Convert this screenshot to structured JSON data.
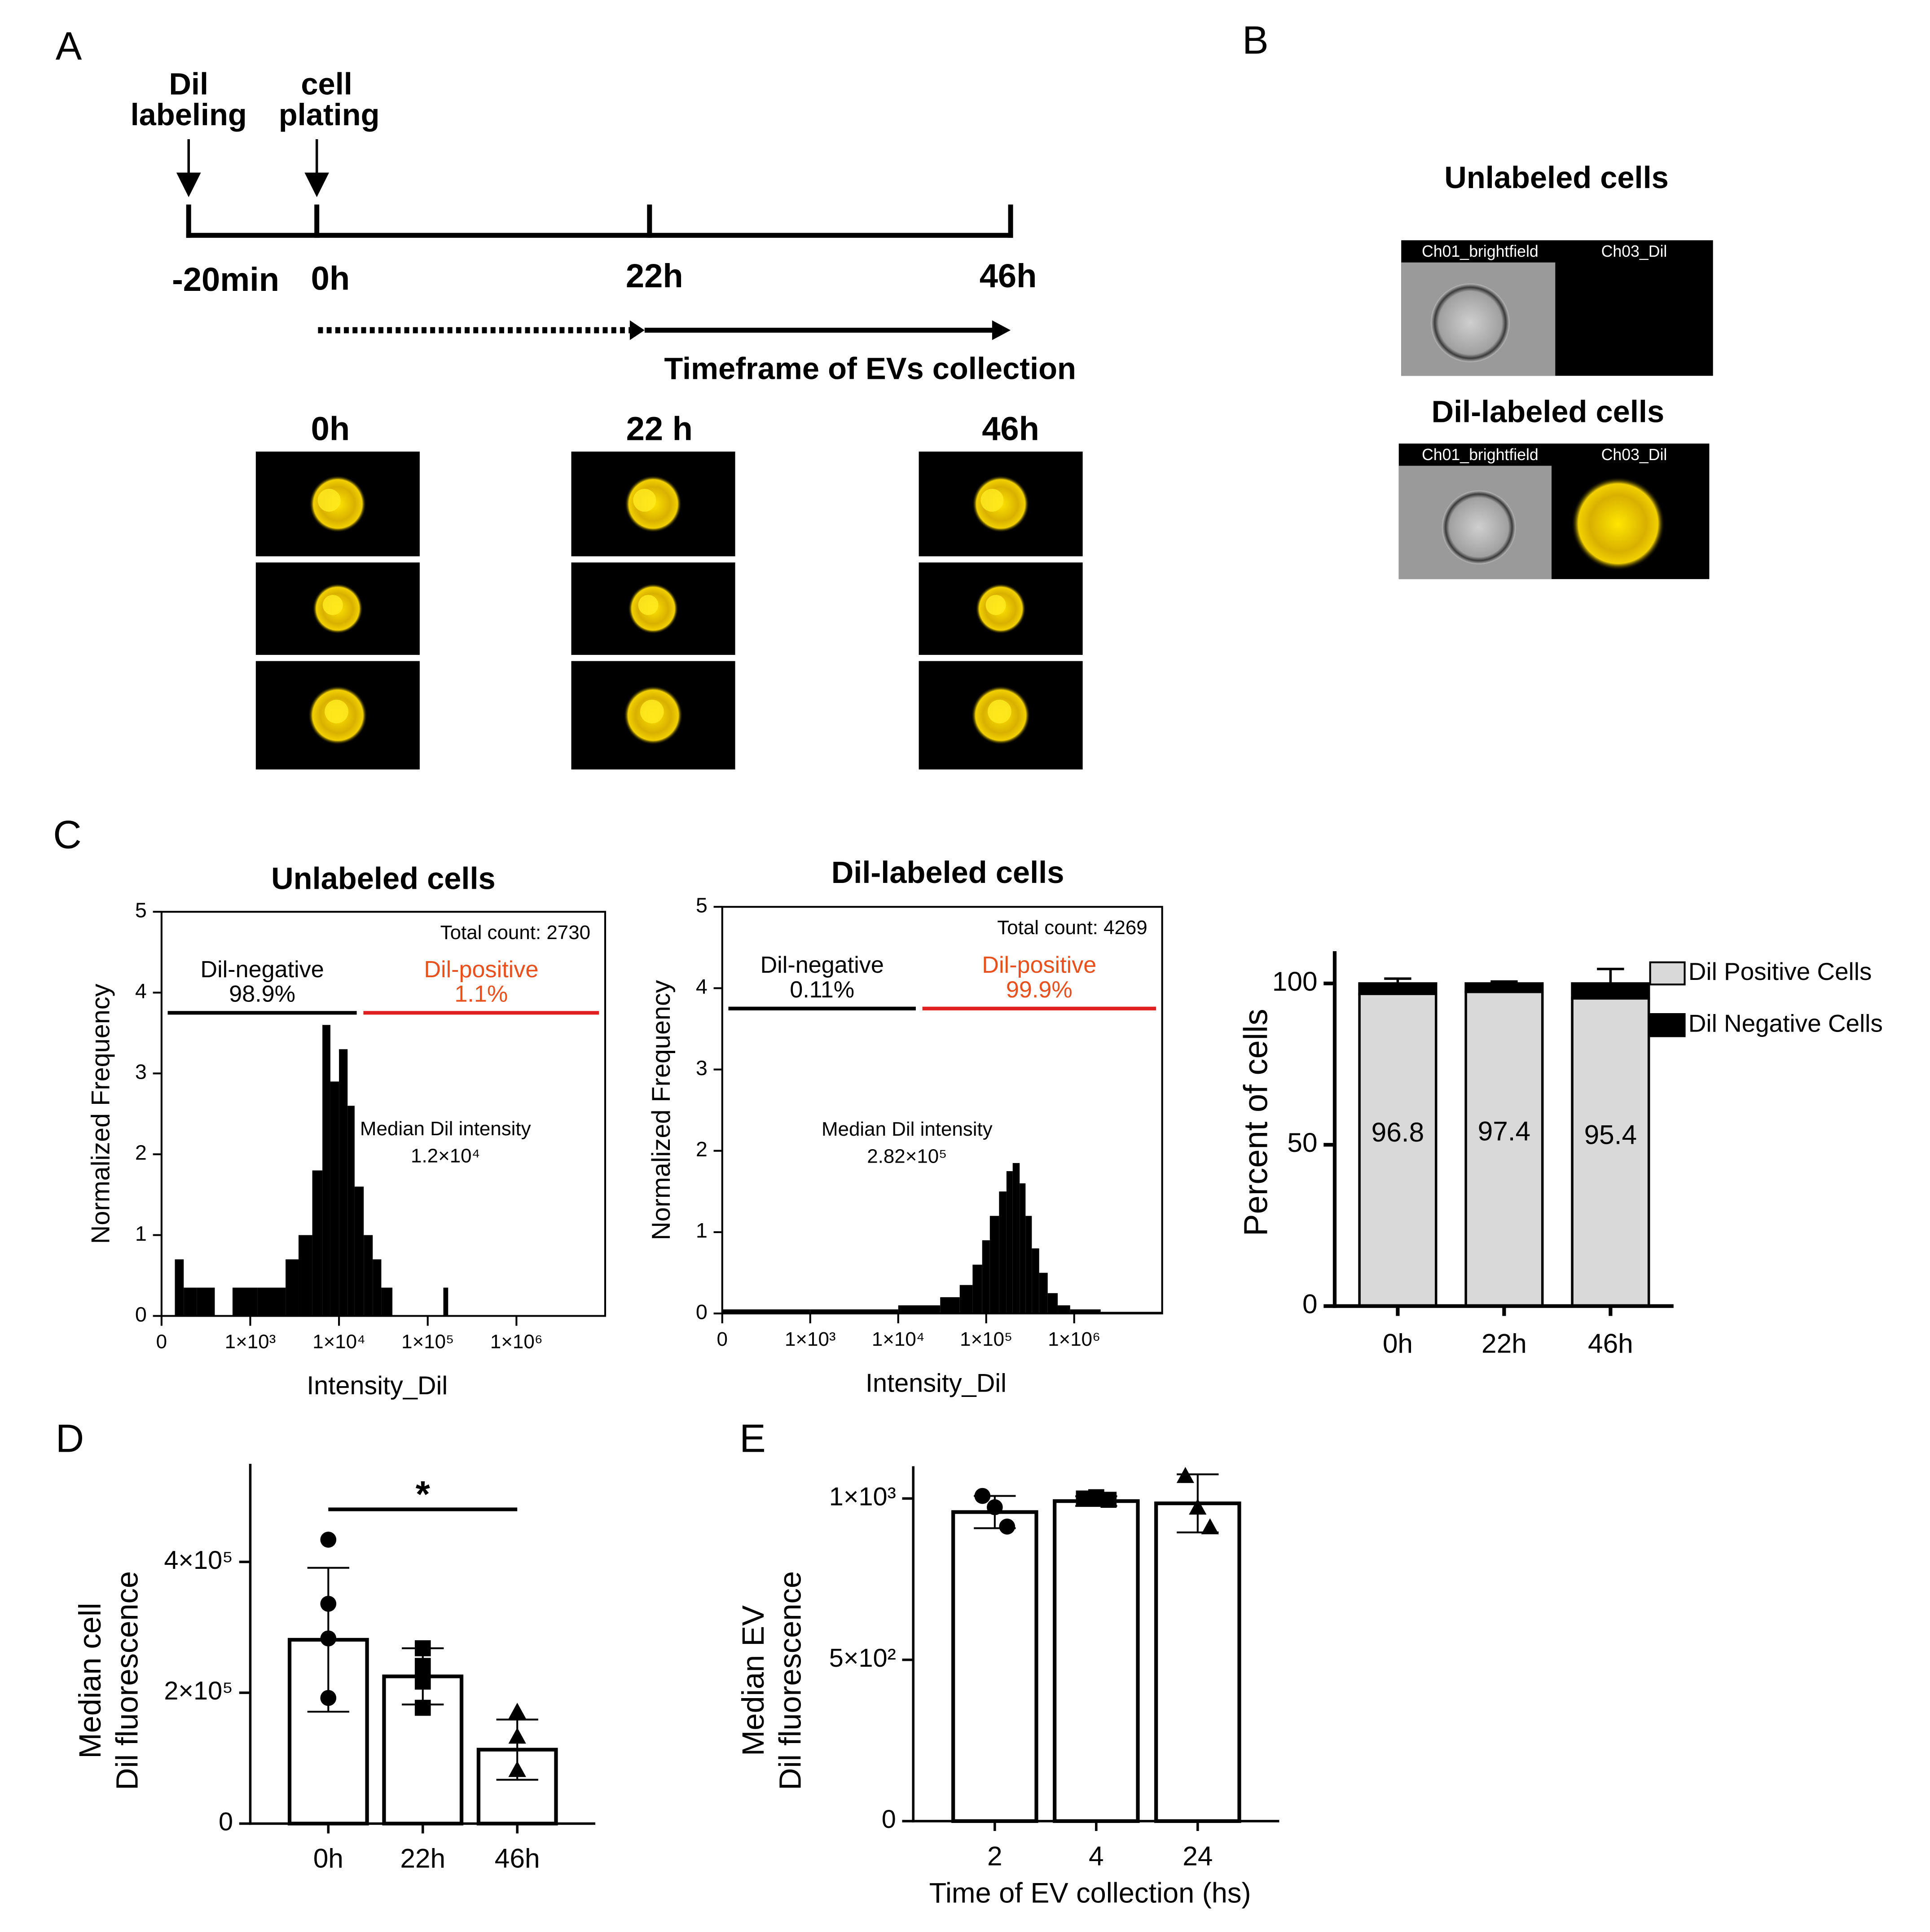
{
  "panel_labels": [
    "A",
    "B",
    "C",
    "D",
    "E"
  ],
  "timeline": {
    "events": [
      [
        "Dil",
        "labeling"
      ],
      [
        "cell",
        "plating"
      ]
    ],
    "ticks": [
      "-20min",
      "0h",
      "22h",
      "46h"
    ],
    "caption": "Timeframe of EVs collection",
    "image_columns": [
      "0h",
      "22 h",
      "46h"
    ]
  },
  "panel_b": {
    "title_unlabeled": "Unlabeled cells",
    "title_labeled": "Dil-labeled cells",
    "channels": [
      "Ch01_brightfield",
      "Ch03_Dil"
    ]
  },
  "chart_data": [
    {
      "type": "histogram",
      "title": "Unlabeled cells",
      "xlabel": "Intensity_Dil",
      "ylabel": "Normalized Frequency",
      "xscale": "biexponential",
      "color": "#000000",
      "bins": [
        150,
        250,
        400,
        600,
        800,
        1200,
        1700,
        2500,
        3500,
        5000,
        6500,
        8000,
        10000,
        12500,
        15000,
        19000,
        24000,
        30000,
        40000,
        150000,
        170000
      ],
      "counts": [
        0.7,
        0.35,
        0.35,
        0,
        0.35,
        0.35,
        0.35,
        0.7,
        1.0,
        1.8,
        3.6,
        2.9,
        3.3,
        2.6,
        1.6,
        1.0,
        0.7,
        0.35,
        0,
        0.35
      ],
      "xlim": [
        0,
        10000000
      ],
      "xticks": [
        0,
        {
          "value": 1000,
          "label": "1×10³"
        },
        {
          "value": 10000,
          "label": "1×10⁴"
        },
        {
          "value": 100000,
          "label": "1×10⁵"
        },
        {
          "value": 1000000,
          "label": "1×10⁶"
        }
      ],
      "ylim": [
        0,
        5
      ],
      "yticks": [
        0,
        1,
        2,
        3,
        4,
        5
      ],
      "total_count": "Total count: 2730",
      "gates": [
        {
          "label": "Dil-negative",
          "percent": "98.9%",
          "color": "#000000"
        },
        {
          "label": "Dil-positive",
          "percent": "1.1%",
          "color": "#e8501e"
        }
      ],
      "median_label": "Median Dil intensity",
      "median_value": "1.2×10⁴"
    },
    {
      "type": "histogram",
      "title": "Dil-labeled cells",
      "xlabel": "Intensity_Dil",
      "ylabel": "Normalized Frequency",
      "xscale": "biexponential",
      "color": "#000000",
      "bins": [
        0,
        1000,
        10000,
        30000,
        50000,
        70000,
        90000,
        110000,
        140000,
        170000,
        200000,
        240000,
        280000,
        330000,
        400000,
        500000,
        650000,
        900000,
        2000000,
        10000000
      ],
      "counts": [
        0.05,
        0.05,
        0.1,
        0.2,
        0.35,
        0.6,
        0.9,
        1.2,
        1.5,
        1.75,
        1.85,
        1.6,
        1.2,
        0.8,
        0.5,
        0.25,
        0.1,
        0.05,
        0.02
      ],
      "xlim": [
        0,
        10000000
      ],
      "xticks": [
        0,
        {
          "value": 1000,
          "label": "1×10³"
        },
        {
          "value": 10000,
          "label": "1×10⁴"
        },
        {
          "value": 100000,
          "label": "1×10⁵"
        },
        {
          "value": 1000000,
          "label": "1×10⁶"
        }
      ],
      "ylim": [
        0,
        5
      ],
      "yticks": [
        0,
        1,
        2,
        3,
        4,
        5
      ],
      "total_count": "Total count: 4269",
      "gates": [
        {
          "label": "Dil-negative",
          "percent": "0.11%",
          "color": "#000000"
        },
        {
          "label": "Dil-positive",
          "percent": "99.9%",
          "color": "#e8501e"
        }
      ],
      "median_label": "Median Dil intensity",
      "median_value": "2.82×10⁵"
    },
    {
      "type": "stacked_bar",
      "ylabel": "Percent of cells",
      "categories": [
        "0h",
        "22h",
        "46h"
      ],
      "series": [
        {
          "name": "Dil Positive Cells",
          "color": "#d9d9d9",
          "values": [
            96.8,
            97.4,
            95.4
          ]
        },
        {
          "name": "Dil Negative Cells",
          "color": "#000000",
          "values": [
            3.2,
            2.6,
            4.6
          ],
          "errors": [
            1.5,
            0.6,
            4.5
          ]
        }
      ],
      "ylim": [
        0,
        110
      ],
      "yticks": [
        0,
        50,
        100
      ],
      "legend": "right"
    },
    {
      "type": "bar",
      "ylabel": [
        "Median cell",
        "Dil fluorescence"
      ],
      "categories": [
        "0h",
        "22h",
        "46h"
      ],
      "values": [
        281000,
        225000,
        113000
      ],
      "errors": [
        110000,
        43000,
        46000
      ],
      "points": [
        [
          434000,
          336000,
          283000,
          192000
        ],
        [
          268000,
          241000,
          217000,
          177000
        ],
        [
          170000,
          132000,
          81000,
          81000
        ]
      ],
      "markers": [
        "circle",
        "square",
        "triangle"
      ],
      "color": "#ffffff",
      "ylim": [
        0,
        550000
      ],
      "yticks": [
        0,
        {
          "value": 200000,
          "label": "2×10⁵"
        },
        {
          "value": 400000,
          "label": "4×10⁵"
        }
      ],
      "significance": {
        "categories": [
          "0h",
          "46h"
        ],
        "label": "*"
      }
    },
    {
      "type": "bar",
      "xlabel": "Time of EV collection (hs)",
      "ylabel": [
        "Median EV",
        "Dil fluorescence"
      ],
      "categories": [
        "2",
        "4",
        "24"
      ],
      "values": [
        958,
        992,
        985
      ],
      "errors": [
        50,
        15,
        90
      ],
      "points": [
        [
          1008,
          973,
          913
        ],
        [
          1000,
          1004,
          996
        ],
        [
          1068,
          970,
          909
        ]
      ],
      "markers": [
        "circle",
        "square",
        "triangle"
      ],
      "color": "#ffffff",
      "ylim": [
        0,
        1100
      ],
      "yticks": [
        0,
        {
          "value": 500,
          "label": "5×10²"
        },
        {
          "value": 1000,
          "label": "1×10³"
        }
      ]
    }
  ]
}
